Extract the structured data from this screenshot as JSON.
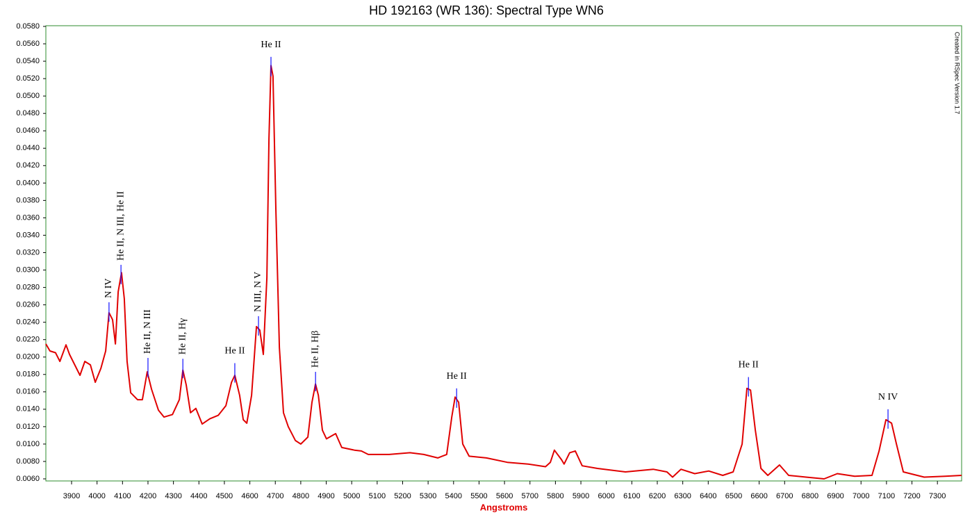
{
  "chart_data": {
    "type": "line",
    "title": "HD 192163 (WR 136): Spectral Type WN6",
    "x_label": "Angstroms",
    "credit": "Created in RSpec Version 1.7",
    "color": "#e00000",
    "marker_color": "#1010ff",
    "x": [
      3799,
      3815,
      3837,
      3854,
      3878,
      3892,
      3933,
      3952,
      3974,
      3993,
      4015,
      4034,
      4047,
      4061,
      4072,
      4083,
      4096,
      4107,
      4118,
      4132,
      4159,
      4178,
      4197,
      4214,
      4241,
      4263,
      4296,
      4323,
      4337,
      4350,
      4367,
      4388,
      4413,
      4443,
      4476,
      4506,
      4528,
      4541,
      4560,
      4574,
      4588,
      4607,
      4626,
      4639,
      4653,
      4667,
      4675,
      4683,
      4691,
      4702,
      4716,
      4732,
      4751,
      4779,
      4800,
      4828,
      4844,
      4858,
      4869,
      4885,
      4901,
      4937,
      4961,
      5011,
      5038,
      5065,
      5147,
      5229,
      5283,
      5338,
      5373,
      5393,
      5406,
      5420,
      5436,
      5461,
      5529,
      5611,
      5693,
      5761,
      5780,
      5796,
      5824,
      5834,
      5856,
      5878,
      5905,
      5965,
      6075,
      6184,
      6238,
      6260,
      6293,
      6347,
      6402,
      6457,
      6498,
      6533,
      6552,
      6566,
      6585,
      6607,
      6634,
      6680,
      6716,
      6784,
      6855,
      6907,
      6975,
      7043,
      7071,
      7098,
      7120,
      7139,
      7166,
      7248,
      7330,
      7395
    ],
    "values": [
      0.0215,
      0.0207,
      0.0205,
      0.0195,
      0.0214,
      0.0203,
      0.0179,
      0.0195,
      0.0191,
      0.0171,
      0.0187,
      0.0207,
      0.0251,
      0.0243,
      0.0215,
      0.0275,
      0.0297,
      0.0267,
      0.0195,
      0.0159,
      0.0151,
      0.0151,
      0.0183,
      0.0163,
      0.0139,
      0.0131,
      0.0134,
      0.0151,
      0.0185,
      0.0168,
      0.0136,
      0.0141,
      0.0123,
      0.0129,
      0.0133,
      0.0144,
      0.0171,
      0.0179,
      0.0156,
      0.0128,
      0.0124,
      0.0156,
      0.0235,
      0.0231,
      0.0203,
      0.0291,
      0.0451,
      0.0535,
      0.0523,
      0.0371,
      0.0211,
      0.0136,
      0.012,
      0.0104,
      0.01,
      0.0108,
      0.0148,
      0.0169,
      0.0156,
      0.0116,
      0.0106,
      0.0112,
      0.0096,
      0.0093,
      0.0092,
      0.0088,
      0.0088,
      0.009,
      0.0088,
      0.0084,
      0.0088,
      0.0131,
      0.0154,
      0.0148,
      0.01,
      0.0086,
      0.0084,
      0.0079,
      0.0077,
      0.0074,
      0.0079,
      0.0093,
      0.0082,
      0.0077,
      0.009,
      0.0092,
      0.0075,
      0.0072,
      0.0068,
      0.0071,
      0.0068,
      0.0062,
      0.0071,
      0.0066,
      0.0069,
      0.0064,
      0.0068,
      0.01,
      0.0164,
      0.0162,
      0.0116,
      0.0072,
      0.0064,
      0.0076,
      0.0064,
      0.0062,
      0.006,
      0.0066,
      0.0063,
      0.0064,
      0.0092,
      0.0128,
      0.0124,
      0.01,
      0.0068,
      0.0062,
      0.0063,
      0.0064
    ],
    "xlim": [
      3799,
      7395
    ],
    "ylim": [
      0.00576,
      0.05808
    ],
    "xticks": [
      3900,
      4000,
      4100,
      4200,
      4300,
      4400,
      4500,
      4600,
      4700,
      4800,
      4900,
      5000,
      5100,
      5200,
      5300,
      5400,
      5500,
      5600,
      5700,
      5800,
      5900,
      6000,
      6100,
      6200,
      6300,
      6400,
      6500,
      6600,
      6700,
      6800,
      6900,
      7000,
      7100,
      7200,
      7300
    ],
    "yticks": [
      {
        "value": 0.006,
        "label": "0.0060"
      },
      {
        "value": 0.008,
        "label": "0.0080"
      },
      {
        "value": 0.01,
        "label": "0.0100"
      },
      {
        "value": 0.012,
        "label": "0.0120"
      },
      {
        "value": 0.014,
        "label": "0.0140"
      },
      {
        "value": 0.016,
        "label": "0.0160"
      },
      {
        "value": 0.018,
        "label": "0.0180"
      },
      {
        "value": 0.02,
        "label": "0.0200"
      },
      {
        "value": 0.022,
        "label": "0.0220"
      },
      {
        "value": 0.024,
        "label": "0.0240"
      },
      {
        "value": 0.026,
        "label": "0.0260"
      },
      {
        "value": 0.028,
        "label": "0.0280"
      },
      {
        "value": 0.03,
        "label": "0.0300"
      },
      {
        "value": 0.032,
        "label": "0.0320"
      },
      {
        "value": 0.034,
        "label": "0.0340"
      },
      {
        "value": 0.036,
        "label": "0.0360"
      },
      {
        "value": 0.038,
        "label": "0.0380"
      },
      {
        "value": 0.04,
        "label": "0.0400"
      },
      {
        "value": 0.042,
        "label": "0.0420"
      },
      {
        "value": 0.044,
        "label": "0.0440"
      },
      {
        "value": 0.046,
        "label": "0.0460"
      },
      {
        "value": 0.048,
        "label": "0.0480"
      },
      {
        "value": 0.05,
        "label": "0.0500"
      },
      {
        "value": 0.052,
        "label": "0.0520"
      },
      {
        "value": 0.054,
        "label": "0.0540"
      },
      {
        "value": 0.056,
        "label": "0.0560"
      },
      {
        "value": 0.058,
        "label": "0.0580"
      }
    ],
    "grid": false,
    "annotations": [
      {
        "text": "N IV",
        "x": 4047,
        "y": 0.0263,
        "rotated": true
      },
      {
        "text": "He II, N III, He II",
        "x": 4094,
        "y": 0.0306,
        "rotated": true
      },
      {
        "text": "He II, N III",
        "x": 4200,
        "y": 0.0199,
        "rotated": true
      },
      {
        "text": "He II, Hγ",
        "x": 4337,
        "y": 0.0198,
        "rotated": true
      },
      {
        "text": "He II",
        "x": 4541,
        "y": 0.0193,
        "rotated": false
      },
      {
        "text": "N III, N V",
        "x": 4634,
        "y": 0.0247,
        "rotated": true
      },
      {
        "text": "He II",
        "x": 4683,
        "y": 0.0545,
        "rotated": false
      },
      {
        "text": "He II, Hβ",
        "x": 4858,
        "y": 0.0183,
        "rotated": true
      },
      {
        "text": "He II",
        "x": 5412,
        "y": 0.0164,
        "rotated": false
      },
      {
        "text": "He II",
        "x": 6558,
        "y": 0.0177,
        "rotated": false
      },
      {
        "text": "N IV",
        "x": 7106,
        "y": 0.014,
        "rotated": false
      }
    ]
  }
}
